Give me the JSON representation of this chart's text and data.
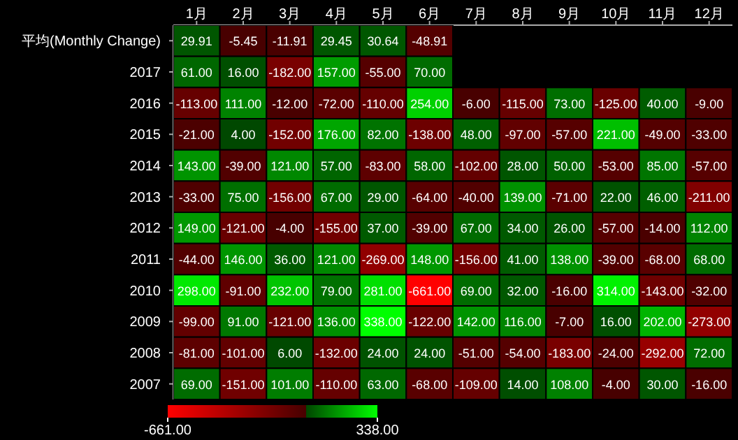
{
  "chart_data": {
    "type": "heatmap",
    "categories": [
      "1月",
      "2月",
      "3月",
      "4月",
      "5月",
      "6月",
      "7月",
      "8月",
      "9月",
      "10月",
      "11月",
      "12月"
    ],
    "y_categories": [
      "平均(Monthly Change)",
      "2017",
      "2016",
      "2015",
      "2014",
      "2013",
      "2012",
      "2011",
      "2010",
      "2009",
      "2008",
      "2007"
    ],
    "cells": [
      [
        29.91,
        -5.45,
        -11.91,
        29.45,
        30.64,
        -48.91,
        null,
        null,
        null,
        null,
        null,
        null
      ],
      [
        61,
        16,
        -182,
        157,
        -55,
        70,
        null,
        null,
        null,
        null,
        null,
        null
      ],
      [
        -113,
        111,
        -12,
        -72,
        -110,
        254,
        -6,
        -115,
        73,
        -125,
        40,
        -9
      ],
      [
        -21,
        4,
        -152,
        176,
        82,
        -138,
        48,
        -97,
        -57,
        221,
        -49,
        -33
      ],
      [
        143,
        -39,
        121,
        57,
        -83,
        58,
        -102,
        28,
        50,
        -53,
        85,
        -57
      ],
      [
        -33,
        75,
        -156,
        67,
        29,
        -64,
        -40,
        139,
        -71,
        22,
        46,
        -211
      ],
      [
        149,
        -121,
        -4,
        -155,
        37,
        -39,
        67,
        34,
        26,
        -57,
        -14,
        112
      ],
      [
        -44,
        146,
        36,
        121,
        -269,
        148,
        -156,
        41,
        138,
        -39,
        -68,
        68
      ],
      [
        298,
        -91,
        232,
        79,
        281,
        -661,
        69,
        32,
        -16,
        314,
        -143,
        -32
      ],
      [
        -99,
        91,
        -121,
        136,
        338,
        -122,
        142,
        116,
        -7,
        16,
        202,
        -273
      ],
      [
        -81,
        -101,
        6,
        -132,
        24,
        24,
        -51,
        -54,
        -183,
        -24,
        -292,
        72
      ],
      [
        69,
        -151,
        101,
        -110,
        63,
        -68,
        -109,
        14,
        108,
        -4,
        30,
        -16
      ]
    ],
    "cell_labels": [
      [
        "29.91",
        "-5.45",
        "-11.91",
        "29.45",
        "30.64",
        "-48.91",
        null,
        null,
        null,
        null,
        null,
        null
      ],
      [
        "61.00",
        "16.00",
        "-182.00",
        "157.00",
        "-55.00",
        "70.00",
        null,
        null,
        null,
        null,
        null,
        null
      ],
      [
        "-113.00",
        "111.00",
        "-12.00",
        "-72.00",
        "-110.00",
        "254.00",
        "-6.00",
        "-115.00",
        "73.00",
        "-125.00",
        "40.00",
        "-9.00"
      ],
      [
        "-21.00",
        "4.00",
        "-152.00",
        "176.00",
        "82.00",
        "-138.00",
        "48.00",
        "-97.00",
        "-57.00",
        "221.00",
        "-49.00",
        "-33.00"
      ],
      [
        "143.00",
        "-39.00",
        "121.00",
        "57.00",
        "-83.00",
        "58.00",
        "-102.00",
        "28.00",
        "50.00",
        "-53.00",
        "85.00",
        "-57.00"
      ],
      [
        "-33.00",
        "75.00",
        "-156.00",
        "67.00",
        "29.00",
        "-64.00",
        "-40.00",
        "139.00",
        "-71.00",
        "22.00",
        "46.00",
        "-211.00"
      ],
      [
        "149.00",
        "-121.00",
        "-4.00",
        "-155.00",
        "37.00",
        "-39.00",
        "67.00",
        "34.00",
        "26.00",
        "-57.00",
        "-14.00",
        "112.00"
      ],
      [
        "-44.00",
        "146.00",
        "36.00",
        "121.00",
        "-269.00",
        "148.00",
        "-156.00",
        "41.00",
        "138.00",
        "-39.00",
        "-68.00",
        "68.00"
      ],
      [
        "298.00",
        "-91.00",
        "232.00",
        "79.00",
        "281.00",
        "-661.00",
        "69.00",
        "32.00",
        "-16.00",
        "314.00",
        "-143.00",
        "-32.00"
      ],
      [
        "-99.00",
        "91.00",
        "-121.00",
        "136.00",
        "338.00",
        "-122.00",
        "142.00",
        "116.00",
        "-7.00",
        "16.00",
        "202.00",
        "-273.00"
      ],
      [
        "-81.00",
        "-101.00",
        "6.00",
        "-132.00",
        "24.00",
        "24.00",
        "-51.00",
        "-54.00",
        "-183.00",
        "-24.00",
        "-292.00",
        "72.00"
      ],
      [
        "69.00",
        "-151.00",
        "101.00",
        "-110.00",
        "63.00",
        "-68.00",
        "-109.00",
        "14.00",
        "108.00",
        "-4.00",
        "30.00",
        "-16.00"
      ]
    ],
    "clim": [
      -661,
      338
    ],
    "cticks": [
      {
        "value": -661,
        "label": "-661.00"
      },
      {
        "value": 338,
        "label": "338.00"
      }
    ]
  }
}
